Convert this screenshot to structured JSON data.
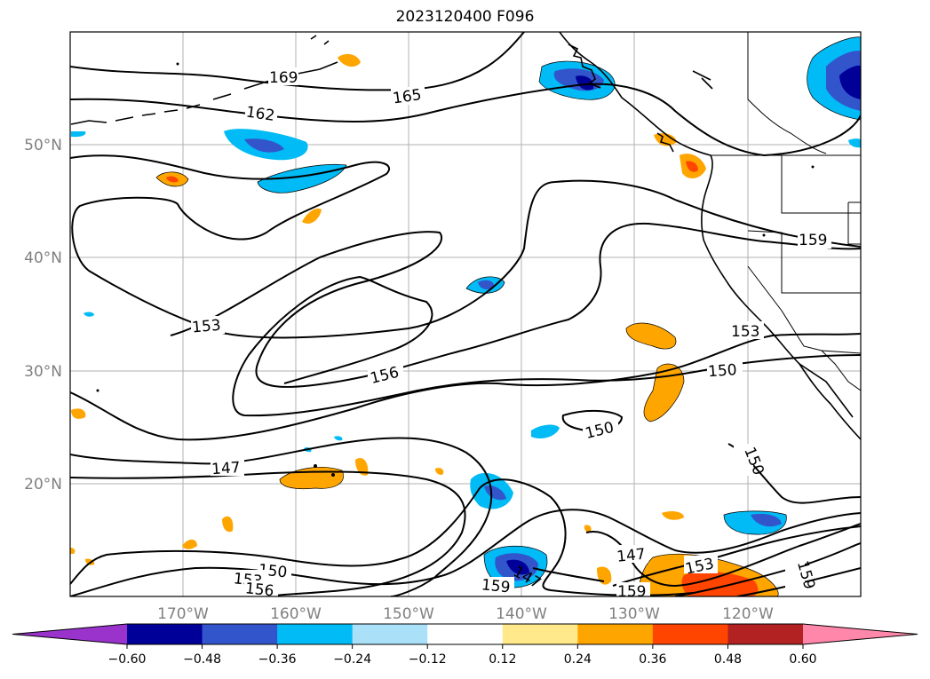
{
  "title": "2023120400 F096",
  "map": {
    "projection": "cylindrical lat/lon",
    "lon_range": [
      -180,
      -110
    ],
    "lat_range": [
      10,
      60
    ],
    "gridlines": true,
    "lon_labels": [
      "170°W",
      "160°W",
      "150°W",
      "140°W",
      "130°W",
      "120°W"
    ],
    "lat_labels": [
      "50°N",
      "40°N",
      "30°N",
      "20°N"
    ],
    "coastlines": true,
    "borders": true
  },
  "contours": {
    "color": "#000000",
    "labels": [
      "169",
      "162",
      "165",
      "159",
      "153",
      "156",
      "150",
      "153",
      "150",
      "150",
      "147",
      "147",
      "150",
      "153",
      "156",
      "159",
      "159",
      "147",
      "153",
      "159",
      "147"
    ]
  },
  "colorbar": {
    "orientation": "horizontal",
    "extend": "both",
    "ticks": [
      "−0.60",
      "−0.48",
      "−0.36",
      "−0.24",
      "−0.12",
      "0.12",
      "0.24",
      "0.36",
      "0.48",
      "0.60"
    ],
    "colors": [
      "#9933cc",
      "#000099",
      "#3355cc",
      "#00bbf5",
      "#aae0f8",
      "#ffffff",
      "#ffe98a",
      "#ffa500",
      "#ff4500",
      "#b22222",
      "#ff88aa"
    ]
  }
}
